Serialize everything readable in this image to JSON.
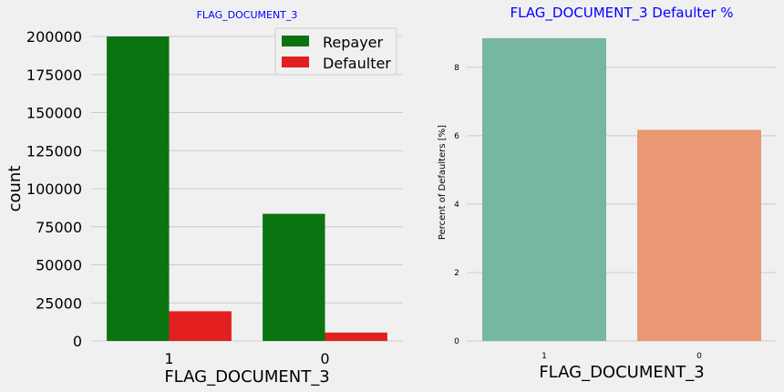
{
  "chart_data": [
    {
      "type": "bar",
      "title": "FLAG_DOCUMENT_3",
      "xlabel": "FLAG_DOCUMENT_3",
      "ylabel": "count",
      "categories": [
        "1",
        "0"
      ],
      "ylim": [
        0,
        200000
      ],
      "yticks": [
        0,
        25000,
        50000,
        75000,
        100000,
        125000,
        150000,
        175000,
        200000
      ],
      "series": [
        {
          "name": "Repayer",
          "color": "#0a7410",
          "values": [
            200000,
            83500
          ]
        },
        {
          "name": "Defaulter",
          "color": "#e31f1f",
          "values": [
            19500,
            5500
          ]
        }
      ],
      "legend": "top-right",
      "grid": true,
      "title_color": "#0000ff"
    },
    {
      "type": "bar",
      "title": "FLAG_DOCUMENT_3 Defaulter %",
      "xlabel": "FLAG_DOCUMENT_3",
      "ylabel": "Percent of Defaulters [%]",
      "categories": [
        "1",
        "0"
      ],
      "ylim": [
        0,
        8.9
      ],
      "yticks": [
        0,
        2,
        4,
        6,
        8
      ],
      "values": [
        8.85,
        6.17
      ],
      "colors": [
        "#76b7a2",
        "#eb9875"
      ],
      "grid": true,
      "title_color": "#0000ff"
    }
  ]
}
